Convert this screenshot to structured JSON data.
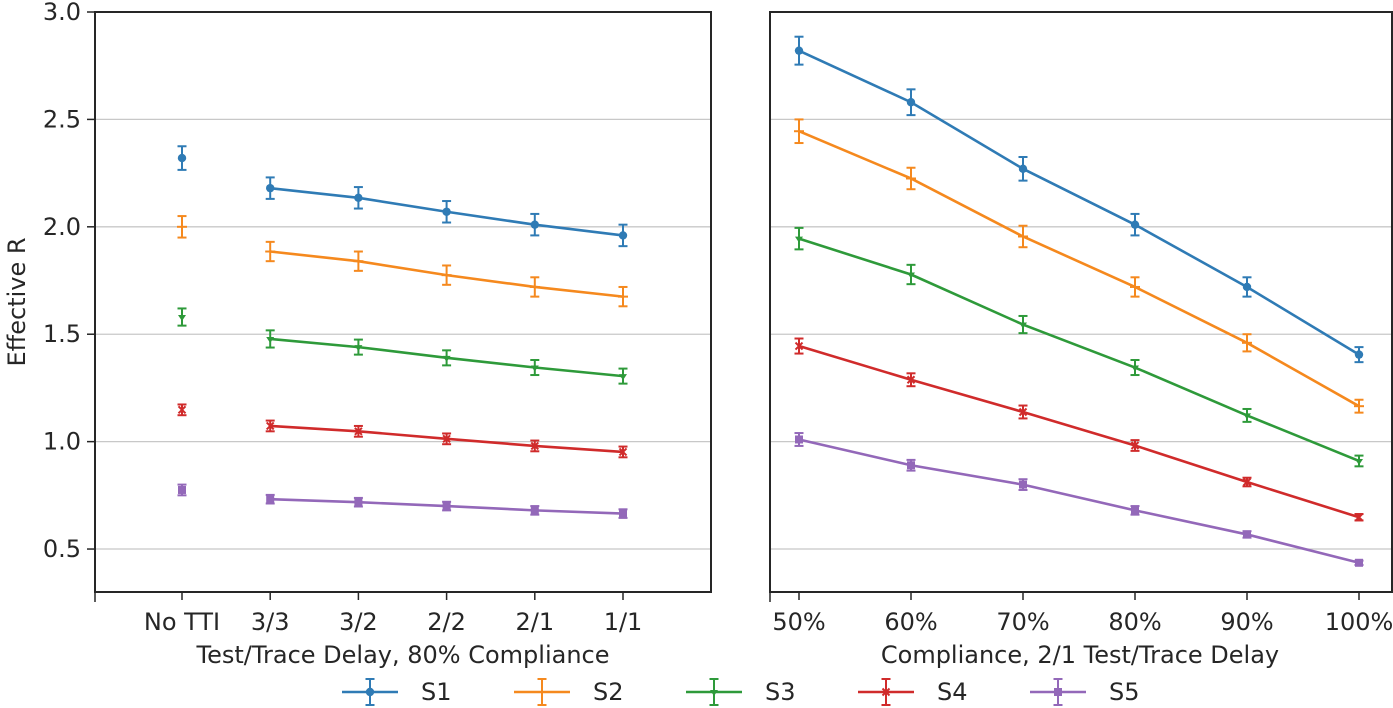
{
  "chart_data": {
    "type": "line",
    "ylabel": "Effective R",
    "ylim": [
      0.3,
      3.0
    ],
    "yticks": [
      0.5,
      1.0,
      1.5,
      2.0,
      2.5,
      3.0
    ],
    "ytick_labels": [
      "0.5",
      "1.0",
      "1.5",
      "2.0",
      "2.5",
      "3.0"
    ],
    "grid": "horizontal",
    "legend_position": "bottom",
    "colors": {
      "S1": "#2f7bb5",
      "S2": "#f5891e",
      "S3": "#2e9a3a",
      "S4": "#d02b2b",
      "S5": "#9368b9"
    },
    "series_names": [
      "S1",
      "S2",
      "S3",
      "S4",
      "S5"
    ],
    "panels": [
      {
        "xlabel": "Test/Trace Delay, 80% Compliance",
        "categories": [
          "No TTI",
          "3/3",
          "3/2",
          "2/2",
          "2/1",
          "1/1"
        ],
        "connected_from_index": 1,
        "series": [
          {
            "name": "S1",
            "values": [
              2.32,
              2.18,
              2.135,
              2.07,
              2.01,
              1.96
            ],
            "errors": [
              0.055,
              0.05,
              0.05,
              0.05,
              0.05,
              0.05
            ]
          },
          {
            "name": "S2",
            "values": [
              2.0,
              1.885,
              1.84,
              1.775,
              1.72,
              1.675
            ],
            "errors": [
              0.05,
              0.045,
              0.045,
              0.045,
              0.045,
              0.045
            ]
          },
          {
            "name": "S3",
            "values": [
              1.58,
              1.478,
              1.44,
              1.39,
              1.345,
              1.305
            ],
            "errors": [
              0.04,
              0.04,
              0.035,
              0.035,
              0.035,
              0.035
            ]
          },
          {
            "name": "S4",
            "values": [
              1.148,
              1.073,
              1.048,
              1.013,
              0.98,
              0.952
            ],
            "errors": [
              0.025,
              0.025,
              0.025,
              0.025,
              0.025,
              0.025
            ]
          },
          {
            "name": "S5",
            "values": [
              0.775,
              0.732,
              0.718,
              0.7,
              0.68,
              0.665
            ],
            "errors": [
              0.025,
              0.02,
              0.02,
              0.02,
              0.02,
              0.02
            ]
          }
        ]
      },
      {
        "xlabel": "Compliance, 2/1 Test/Trace Delay",
        "categories": [
          "50%",
          "60%",
          "70%",
          "80%",
          "90%",
          "100%"
        ],
        "connected_from_index": 0,
        "series": [
          {
            "name": "S1",
            "values": [
              2.82,
              2.58,
              2.27,
              2.01,
              1.72,
              1.405
            ],
            "errors": [
              0.065,
              0.06,
              0.055,
              0.05,
              0.045,
              0.035
            ]
          },
          {
            "name": "S2",
            "values": [
              2.445,
              2.225,
              1.955,
              1.72,
              1.46,
              1.165
            ],
            "errors": [
              0.055,
              0.05,
              0.05,
              0.045,
              0.04,
              0.03
            ]
          },
          {
            "name": "S3",
            "values": [
              1.945,
              1.778,
              1.545,
              1.345,
              1.122,
              0.91
            ],
            "errors": [
              0.05,
              0.045,
              0.04,
              0.035,
              0.03,
              0.025
            ]
          },
          {
            "name": "S4",
            "values": [
              1.445,
              1.288,
              1.138,
              0.982,
              0.812,
              0.648
            ],
            "errors": [
              0.035,
              0.03,
              0.03,
              0.025,
              0.02,
              0.015
            ]
          },
          {
            "name": "S5",
            "values": [
              1.01,
              0.89,
              0.8,
              0.68,
              0.568,
              0.436
            ],
            "errors": [
              0.03,
              0.025,
              0.025,
              0.02,
              0.015,
              0.01
            ]
          }
        ]
      }
    ]
  }
}
